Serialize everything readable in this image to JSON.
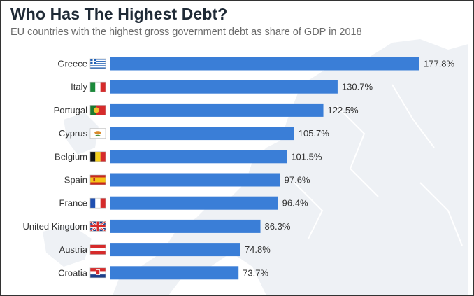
{
  "colors": {
    "bar": "#3a7ed7",
    "text": "#333333",
    "title": "#1f2a36",
    "subtitle": "#6b6b6b",
    "map": "#eef0f4"
  },
  "chart_data": {
    "type": "bar",
    "orientation": "horizontal",
    "title": "Who Has The Highest Debt?",
    "subtitle": "EU countries with the highest gross government debt as share of GDP in 2018",
    "categories": [
      "Greece",
      "Italy",
      "Portugal",
      "Cyprus",
      "Belgium",
      "Spain",
      "France",
      "United Kingdom",
      "Austria",
      "Croatia"
    ],
    "values": [
      177.8,
      130.7,
      122.5,
      105.7,
      101.5,
      97.6,
      96.4,
      86.3,
      74.8,
      73.7
    ],
    "value_labels": [
      "177.8%",
      "130.7%",
      "122.5%",
      "105.7%",
      "101.5%",
      "97.6%",
      "96.4%",
      "86.3%",
      "74.8%",
      "73.7%"
    ],
    "flags": [
      "greece-flag-icon",
      "italy-flag-icon",
      "portugal-flag-icon",
      "cyprus-flag-icon",
      "belgium-flag-icon",
      "spain-flag-icon",
      "france-flag-icon",
      "united-kingdom-flag-icon",
      "austria-flag-icon",
      "croatia-flag-icon"
    ],
    "xlim": [
      0,
      177.8
    ],
    "xlabel": "",
    "ylabel": "",
    "grid": false,
    "legend": "none"
  }
}
